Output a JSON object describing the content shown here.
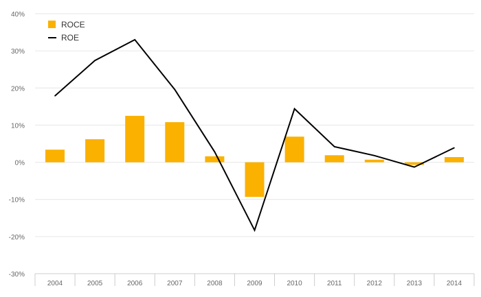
{
  "chart_data": {
    "type": "bar",
    "categories": [
      "2004",
      "2005",
      "2006",
      "2007",
      "2008",
      "2009",
      "2010",
      "2011",
      "2012",
      "2013",
      "2014"
    ],
    "series": [
      {
        "name": "ROCE",
        "type": "bar",
        "color": "#FBB100",
        "values": [
          3.4,
          6.2,
          12.5,
          10.8,
          1.6,
          -9.3,
          6.9,
          1.9,
          0.7,
          -0.7,
          1.4
        ]
      },
      {
        "name": "ROE",
        "type": "line",
        "color": "#000000",
        "values": [
          17.9,
          27.4,
          33.0,
          19.6,
          2.8,
          -18.3,
          14.4,
          4.2,
          1.8,
          -1.3,
          3.9
        ]
      }
    ],
    "ylim": [
      -30,
      40
    ],
    "yticks": [
      "-30%",
      "-20%",
      "-10%",
      "0%",
      "10%",
      "20%",
      "30%",
      "40%"
    ],
    "ytick_values": [
      -30,
      -20,
      -10,
      0,
      10,
      20,
      30,
      40
    ],
    "grid": true,
    "legend": "top-left"
  }
}
